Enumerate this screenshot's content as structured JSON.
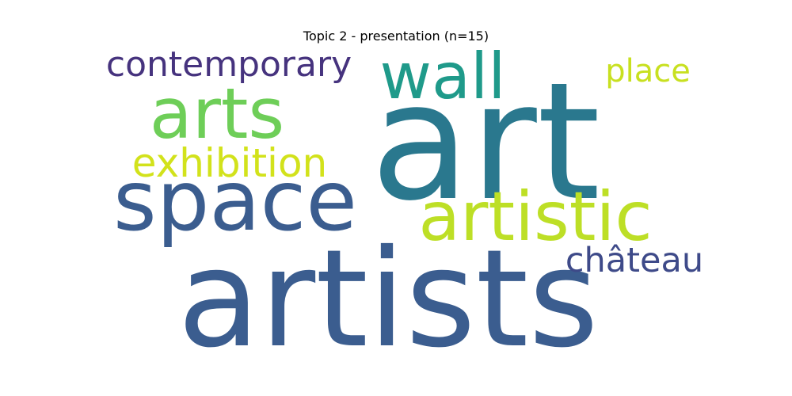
{
  "figure": {
    "title": "Topic 2 - presentation (n=15)"
  },
  "words": [
    {
      "text": "artists",
      "color": "#3b5d8f"
    },
    {
      "text": "art",
      "color": "#2a788e"
    },
    {
      "text": "space",
      "color": "#3b5d8f"
    },
    {
      "text": "artistic",
      "color": "#bddf26"
    },
    {
      "text": "arts",
      "color": "#6ece58"
    },
    {
      "text": "wall",
      "color": "#1f9a8a"
    },
    {
      "text": "exhibition",
      "color": "#d2e21b"
    },
    {
      "text": "contemporary",
      "color": "#46337e"
    },
    {
      "text": "château",
      "color": "#3e4a89"
    },
    {
      "text": "place",
      "color": "#c8e020"
    }
  ]
}
